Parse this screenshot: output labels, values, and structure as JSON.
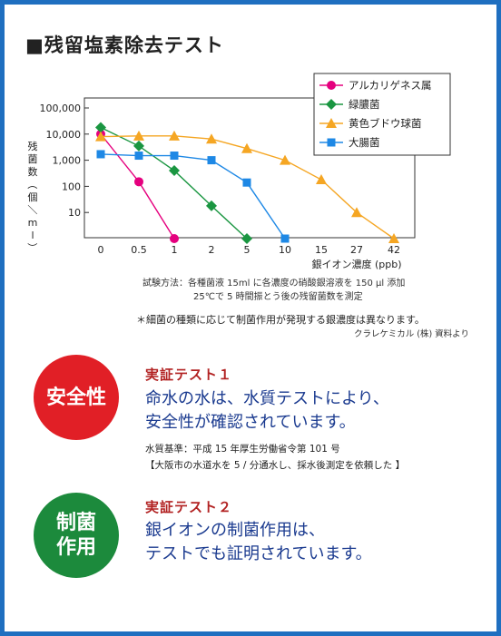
{
  "title": "■残留塩素除去テスト",
  "chart_data": {
    "type": "line",
    "yscale": "log",
    "ylim": [
      1,
      100000
    ],
    "ylabel": "残菌数（個／ml）",
    "xlabel": "銀イオン濃度 (ppb)",
    "y_ticks": [
      "100,000",
      "10,000",
      "1,000",
      "100",
      "10"
    ],
    "categories": [
      "0",
      "0.5",
      "1",
      "2",
      "5",
      "10",
      "15",
      "27",
      "42"
    ],
    "grid": false,
    "legend_position": "top-right",
    "series": [
      {
        "name": "アルカリゲネス属",
        "color": "#e5007e",
        "marker": "circle",
        "points": [
          [
            0,
            10000
          ],
          [
            0.5,
            150
          ],
          [
            1,
            1
          ]
        ]
      },
      {
        "name": "緑膿菌",
        "color": "#1a9641",
        "marker": "diamond",
        "points": [
          [
            0,
            18000
          ],
          [
            0.5,
            3500
          ],
          [
            1,
            400
          ],
          [
            2,
            18
          ],
          [
            5,
            1
          ]
        ]
      },
      {
        "name": "黄色ブドウ球菌",
        "color": "#f5a623",
        "marker": "triangle",
        "points": [
          [
            0,
            8000
          ],
          [
            0.5,
            8500
          ],
          [
            1,
            8500
          ],
          [
            2,
            6500
          ],
          [
            5,
            2800
          ],
          [
            10,
            1000
          ],
          [
            15,
            180
          ],
          [
            27,
            10
          ],
          [
            42,
            1
          ]
        ]
      },
      {
        "name": "大腸菌",
        "color": "#1e88e5",
        "marker": "square",
        "points": [
          [
            0,
            1700
          ],
          [
            0.5,
            1500
          ],
          [
            1,
            1500
          ],
          [
            2,
            1000
          ],
          [
            5,
            140
          ],
          [
            10,
            1
          ]
        ]
      }
    ]
  },
  "method": {
    "line1": "試験方法：各種菌液 15ml に各濃度の硝酸銀溶液を 150 μl 添加",
    "line2": "25℃で 5 時間振とう後の残留菌数を測定"
  },
  "note": "＊細菌の種類に応じて制菌作用が発現する銀濃度は異なります。",
  "source": "クラレケミカル (株) 資料より",
  "test1": {
    "badge": "安全性",
    "label": "実証テスト１",
    "main_line1": "命水の水は、水質テストにより、",
    "main_line2": "安全性が確認されています。",
    "sub_line1": "水質基準：平成 15 年厚生労働省令第 101 号",
    "sub_line2": "【大阪市の水道水を 5 / 分通水し、採水後測定を依頼した 】"
  },
  "test2": {
    "badge_line1": "制菌",
    "badge_line2": "作用",
    "label": "実証テスト２",
    "main_line1": "銀イオンの制菌作用は、",
    "main_line2": "テストでも証明されています。"
  }
}
